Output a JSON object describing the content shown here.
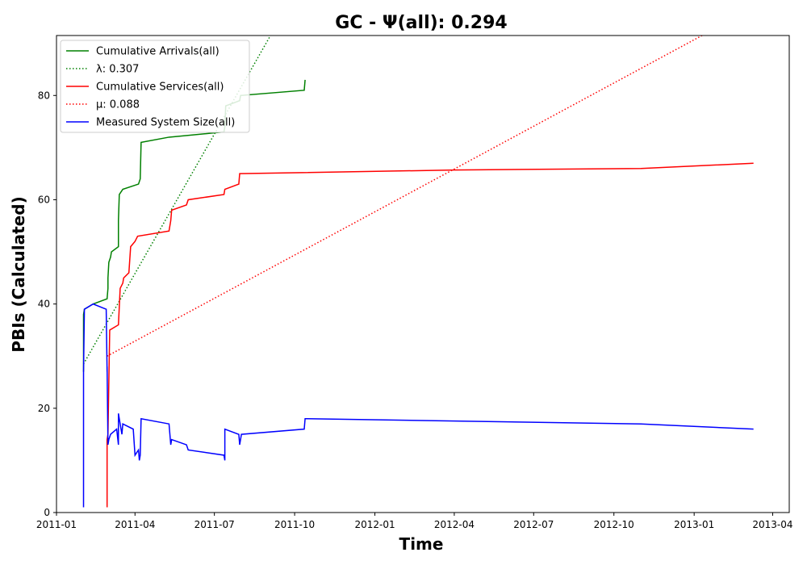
{
  "chart_data": {
    "type": "line",
    "title": "GC -  Ψ(all): 0.294",
    "xlabel": "Time",
    "ylabel": "PBIs (Calculated)",
    "xlim": [
      "2011-01-01",
      "2013-04-20"
    ],
    "ylim": [
      0,
      91.5
    ],
    "x_ticks": [
      "2011-01",
      "2011-04",
      "2011-07",
      "2011-10",
      "2012-01",
      "2012-04",
      "2012-07",
      "2012-10",
      "2013-01",
      "2013-04"
    ],
    "y_ticks": [
      0,
      20,
      40,
      60,
      80
    ],
    "grid": false,
    "legend_position": "top-left",
    "series": [
      {
        "name": "Cumulative Arrivals(all)",
        "color": "#008000",
        "style": "solid",
        "points": [
          [
            "2011-02-01",
            27
          ],
          [
            "2011-02-01",
            38
          ],
          [
            "2011-02-02",
            39
          ],
          [
            "2011-02-12",
            40
          ],
          [
            "2011-02-28",
            41
          ],
          [
            "2011-03-01",
            43
          ],
          [
            "2011-03-01",
            45
          ],
          [
            "2011-03-02",
            48
          ],
          [
            "2011-03-04",
            49
          ],
          [
            "2011-03-05",
            50
          ],
          [
            "2011-03-13",
            51
          ],
          [
            "2011-03-13",
            56
          ],
          [
            "2011-03-14",
            61
          ],
          [
            "2011-03-18",
            62
          ],
          [
            "2011-04-05",
            63
          ],
          [
            "2011-04-07",
            64
          ],
          [
            "2011-04-08",
            71
          ],
          [
            "2011-05-10",
            72
          ],
          [
            "2011-07-12",
            73
          ],
          [
            "2011-07-13",
            74
          ],
          [
            "2011-07-14",
            78
          ],
          [
            "2011-07-30",
            79
          ],
          [
            "2011-07-31",
            80
          ],
          [
            "2011-10-12",
            81
          ],
          [
            "2011-10-13",
            83
          ]
        ]
      },
      {
        "name": "λ: 0.307",
        "color": "#008000",
        "style": "dotted",
        "points": [
          [
            "2011-02-01",
            28.5
          ],
          [
            "2011-09-05",
            92
          ]
        ]
      },
      {
        "name": "Cumulative Services(all)",
        "color": "#ff0000",
        "style": "solid",
        "points": [
          [
            "2011-02-28",
            1
          ],
          [
            "2011-02-28",
            14
          ],
          [
            "2011-03-01",
            15
          ],
          [
            "2011-03-03",
            35
          ],
          [
            "2011-03-13",
            36
          ],
          [
            "2011-03-15",
            43
          ],
          [
            "2011-03-18",
            44
          ],
          [
            "2011-03-19",
            45
          ],
          [
            "2011-03-25",
            46
          ],
          [
            "2011-03-27",
            51
          ],
          [
            "2011-04-01",
            52
          ],
          [
            "2011-04-04",
            53
          ],
          [
            "2011-05-10",
            54
          ],
          [
            "2011-05-12",
            56
          ],
          [
            "2011-05-13",
            58
          ],
          [
            "2011-05-30",
            59
          ],
          [
            "2011-06-01",
            60
          ],
          [
            "2011-07-12",
            61
          ],
          [
            "2011-07-13",
            62
          ],
          [
            "2011-07-29",
            63
          ],
          [
            "2011-07-30",
            65
          ],
          [
            "2012-04-01",
            65.7
          ],
          [
            "2012-11-01",
            66
          ],
          [
            "2013-03-10",
            67
          ]
        ]
      },
      {
        "name": "μ: 0.088",
        "color": "#ff0000",
        "style": "dotted",
        "points": [
          [
            "2011-02-28",
            30
          ],
          [
            "2013-01-10",
            91.5
          ]
        ]
      },
      {
        "name": "Measured System Size(all)",
        "color": "#0000ff",
        "style": "solid",
        "points": [
          [
            "2011-02-01",
            1
          ],
          [
            "2011-02-01",
            27
          ],
          [
            "2011-02-02",
            39
          ],
          [
            "2011-02-12",
            40
          ],
          [
            "2011-02-27",
            39
          ],
          [
            "2011-02-28",
            27
          ],
          [
            "2011-02-28",
            28
          ],
          [
            "2011-03-01",
            13
          ],
          [
            "2011-03-02",
            14
          ],
          [
            "2011-03-04",
            15
          ],
          [
            "2011-03-11",
            16
          ],
          [
            "2011-03-13",
            13
          ],
          [
            "2011-03-13",
            19
          ],
          [
            "2011-03-15",
            17
          ],
          [
            "2011-03-17",
            15
          ],
          [
            "2011-03-18",
            17
          ],
          [
            "2011-03-30",
            16
          ],
          [
            "2011-04-01",
            11
          ],
          [
            "2011-04-05",
            12
          ],
          [
            "2011-04-06",
            10
          ],
          [
            "2011-04-07",
            11
          ],
          [
            "2011-04-08",
            18
          ],
          [
            "2011-05-10",
            17
          ],
          [
            "2011-05-11",
            15
          ],
          [
            "2011-05-12",
            13
          ],
          [
            "2011-05-13",
            14
          ],
          [
            "2011-05-30",
            13
          ],
          [
            "2011-06-01",
            12
          ],
          [
            "2011-07-12",
            11
          ],
          [
            "2011-07-13",
            10
          ],
          [
            "2011-07-13",
            16
          ],
          [
            "2011-07-29",
            15
          ],
          [
            "2011-07-30",
            13
          ],
          [
            "2011-08-01",
            15
          ],
          [
            "2011-10-12",
            16
          ],
          [
            "2011-10-13",
            18
          ],
          [
            "2012-11-01",
            17
          ],
          [
            "2013-03-10",
            16
          ]
        ]
      }
    ]
  }
}
